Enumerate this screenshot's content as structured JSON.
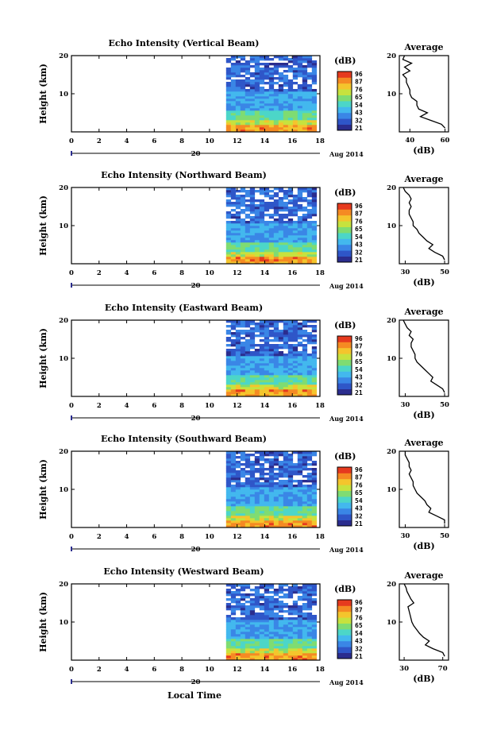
{
  "figure": {
    "xlabel": "Local Time",
    "date_label": "Aug 2014",
    "day_label": "20",
    "colorbar_unit": "(dB)",
    "colorbar_ticks": [
      "96",
      "87",
      "76",
      "65",
      "54",
      "43",
      "32",
      "21"
    ],
    "avg_title": "Average",
    "avg_xlabel": "(dB)",
    "ylabel": "Height (km)",
    "palette": [
      "#2b2d8e",
      "#2f56c8",
      "#3a86e6",
      "#43b8ee",
      "#4cd6c8",
      "#7fdc72",
      "#c7e23e",
      "#f4c52d",
      "#f58a23",
      "#e63a1e"
    ]
  },
  "chart_data": [
    {
      "type": "heatmap",
      "title": "Echo Intensity (Vertical Beam)",
      "ylabel": "Height (km)",
      "xlim": [
        0,
        18
      ],
      "ylim": [
        0,
        20
      ],
      "xticks": [
        0,
        2,
        4,
        6,
        8,
        10,
        12,
        14,
        16,
        18
      ],
      "yticks": [
        10,
        20
      ],
      "data_x_range": [
        11.2,
        17.6
      ],
      "avg_profile": {
        "x_ticks": [
          40,
          60
        ],
        "xlim": [
          34,
          62
        ],
        "height_km": [
          1,
          2,
          3,
          4,
          5,
          6,
          7,
          8,
          9,
          10,
          11,
          12,
          13,
          14,
          15,
          16,
          17,
          18,
          19,
          20
        ],
        "db": [
          60,
          58,
          52,
          46,
          50,
          45,
          44,
          44,
          41,
          40,
          40,
          39,
          38,
          38,
          36,
          40,
          37,
          41,
          36,
          37
        ]
      }
    },
    {
      "type": "heatmap",
      "title": "Echo Intensity (Northward Beam)",
      "ylabel": "Height (km)",
      "xlim": [
        0,
        18
      ],
      "ylim": [
        0,
        20
      ],
      "xticks": [
        0,
        2,
        4,
        6,
        8,
        10,
        12,
        14,
        16,
        18
      ],
      "yticks": [
        10,
        20
      ],
      "data_x_range": [
        11.2,
        17.6
      ],
      "avg_profile": {
        "x_ticks": [
          30,
          50
        ],
        "xlim": [
          27,
          52
        ],
        "height_km": [
          1,
          2,
          3,
          4,
          5,
          6,
          7,
          8,
          9,
          10,
          11,
          12,
          13,
          14,
          15,
          16,
          17,
          18,
          19,
          20
        ],
        "db": [
          50,
          49,
          45,
          42,
          44,
          41,
          39,
          37,
          36,
          34,
          34,
          33,
          32,
          32,
          33,
          32,
          33,
          32,
          30,
          29
        ]
      }
    },
    {
      "type": "heatmap",
      "title": "Echo Intensity (Eastward Beam)",
      "ylabel": "Height (km)",
      "xlim": [
        0,
        18
      ],
      "ylim": [
        0,
        20
      ],
      "xticks": [
        0,
        2,
        4,
        6,
        8,
        10,
        12,
        14,
        16,
        18
      ],
      "yticks": [
        10,
        20
      ],
      "data_x_range": [
        11.2,
        17.6
      ],
      "avg_profile": {
        "x_ticks": [
          30,
          50
        ],
        "xlim": [
          27,
          52
        ],
        "height_km": [
          1,
          2,
          3,
          4,
          5,
          6,
          7,
          8,
          9,
          10,
          11,
          12,
          13,
          14,
          15,
          16,
          17,
          18,
          19,
          20
        ],
        "db": [
          50,
          49,
          46,
          43,
          44,
          42,
          40,
          38,
          36,
          35,
          35,
          34,
          33,
          33,
          34,
          32,
          33,
          31,
          30,
          29
        ]
      }
    },
    {
      "type": "heatmap",
      "title": "Echo Intensity (Southward Beam)",
      "ylabel": "Height (km)",
      "xlim": [
        0,
        18
      ],
      "ylim": [
        0,
        20
      ],
      "xticks": [
        0,
        2,
        4,
        6,
        8,
        10,
        12,
        14,
        16,
        18
      ],
      "yticks": [
        10,
        20
      ],
      "data_x_range": [
        11.2,
        17.6
      ],
      "avg_profile": {
        "x_ticks": [
          30,
          50
        ],
        "xlim": [
          27,
          52
        ],
        "height_km": [
          1,
          2,
          3,
          4,
          5,
          6,
          7,
          8,
          9,
          10,
          11,
          12,
          13,
          14,
          15,
          16,
          17,
          18,
          19,
          20
        ],
        "db": [
          50,
          50,
          46,
          42,
          43,
          41,
          40,
          38,
          36,
          35,
          34,
          34,
          33,
          32,
          33,
          32,
          32,
          31,
          30,
          30
        ]
      }
    },
    {
      "type": "heatmap",
      "title": "Echo Intensity (Westward Beam)",
      "ylabel": "Height (km)",
      "xlim": [
        0,
        18
      ],
      "ylim": [
        0,
        20
      ],
      "xticks": [
        0,
        2,
        4,
        6,
        8,
        10,
        12,
        14,
        16,
        18
      ],
      "yticks": [
        10,
        20
      ],
      "data_x_range": [
        11.2,
        17.6
      ],
      "avg_profile": {
        "x_ticks": [
          30,
          70
        ],
        "xlim": [
          25,
          76
        ],
        "height_km": [
          1,
          2,
          3,
          4,
          5,
          6,
          7,
          8,
          9,
          10,
          11,
          12,
          13,
          14,
          15,
          16,
          17,
          18,
          19,
          20
        ],
        "db": [
          72,
          70,
          60,
          52,
          56,
          50,
          46,
          43,
          40,
          38,
          37,
          36,
          35,
          34,
          40,
          37,
          35,
          33,
          32,
          30
        ]
      }
    }
  ]
}
